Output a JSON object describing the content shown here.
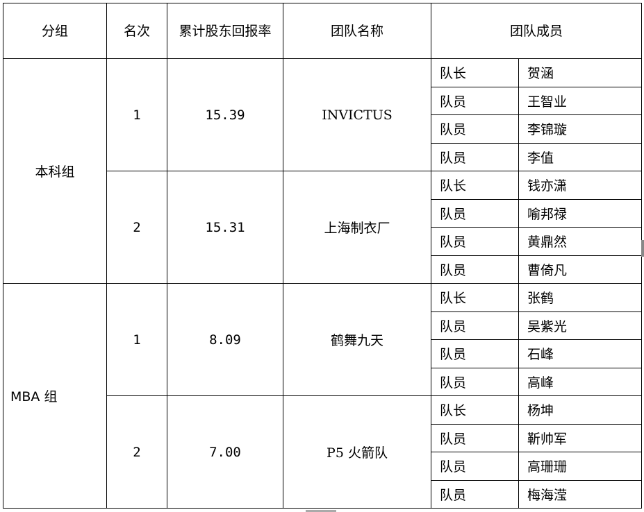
{
  "header": {
    "group": "分组",
    "rank": "名次",
    "return": "累计股东回报率",
    "team_name": "团队名称",
    "members": "团队成员"
  },
  "groups": [
    {
      "name": "本科组",
      "align": "center",
      "teams": [
        {
          "rank": "1",
          "return": "15.39",
          "name": "INVICTUS",
          "members": [
            [
              "队长",
              "贺涵"
            ],
            [
              "队员",
              "王智业"
            ],
            [
              "队员",
              "李锦璇"
            ],
            [
              "队员",
              "李值"
            ]
          ]
        },
        {
          "rank": "2",
          "return": "15.31",
          "name": "上海制衣厂",
          "members": [
            [
              "队长",
              "钱亦潇"
            ],
            [
              "队员",
              "喻邦禄"
            ],
            [
              "队员",
              "黄鼎然"
            ],
            [
              "队员",
              "曹倚凡"
            ]
          ]
        }
      ]
    },
    {
      "name": "MBA 组",
      "align": "left",
      "teams": [
        {
          "rank": "1",
          "return": "8.09",
          "name": "鹤舞九天",
          "members": [
            [
              "队长",
              "张鹤"
            ],
            [
              "队员",
              "吴紫光"
            ],
            [
              "队员",
              "石峰"
            ],
            [
              "队员",
              "高峰"
            ]
          ]
        },
        {
          "rank": "2",
          "return": "7.00",
          "name": "P5 火箭队",
          "members": [
            [
              "队长",
              "杨坤"
            ],
            [
              "队员",
              "靳帅军"
            ],
            [
              "队员",
              "高珊珊"
            ],
            [
              "队员",
              "梅海滢"
            ]
          ]
        }
      ]
    }
  ]
}
